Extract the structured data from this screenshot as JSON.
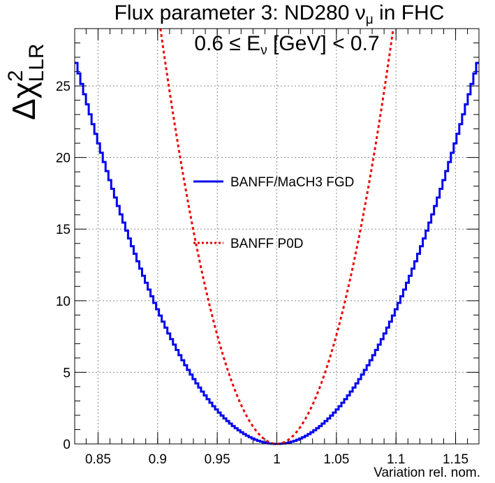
{
  "chart_data": {
    "type": "line",
    "title": "Flux parameter 3: ND280 ν",
    "title_sub": "μ",
    "title_suffix": " in FHC",
    "subtitle": "0.6 ≤ E",
    "subtitle_sub": "ν",
    "subtitle_suffix": " [GeV] < 0.7",
    "xlabel": "Variation rel. nom.",
    "ylabel": "Δχ",
    "ylabel_sup": "2",
    "ylabel_sub": "LLR",
    "xlim": [
      0.8304,
      1.1696
    ],
    "ylim": [
      0,
      29
    ],
    "grid": true,
    "legend_placement": "center",
    "xticks": [
      0.85,
      0.9,
      0.95,
      1.0,
      1.05,
      1.1,
      1.15
    ],
    "xtick_labels": [
      "0.85",
      "0.9",
      "0.95",
      "1",
      "1.05",
      "1.1",
      "1.15"
    ],
    "yticks": [
      0,
      5,
      10,
      15,
      20,
      25
    ],
    "ytick_labels": [
      "0",
      "5",
      "10",
      "15",
      "20",
      "25"
    ],
    "series": [
      {
        "name": "BANFF/MaCH3 FGD",
        "style": "step",
        "color": "#0000ee",
        "x_min": 0.8304,
        "x_max": 1.1696,
        "bins": 144,
        "center": 1.0,
        "curvature": 938,
        "x": [
          0.83,
          0.85,
          0.9,
          0.95,
          1.0,
          1.05,
          1.1,
          1.15,
          1.17
        ],
        "values": [
          27.6,
          21.2,
          9.4,
          2.3,
          0.0,
          2.4,
          9.4,
          21.0,
          25.8
        ]
      },
      {
        "name": "BANFF P0D",
        "style": "dashed",
        "color": "#ee0000",
        "x_min": 0.8304,
        "x_max": 1.1696,
        "center": 1.0,
        "curvature": 3040,
        "x": [
          0.9,
          0.95,
          1.0,
          1.05,
          1.1
        ],
        "values": [
          30.4,
          7.6,
          0.0,
          7.6,
          30.4
        ]
      }
    ]
  }
}
